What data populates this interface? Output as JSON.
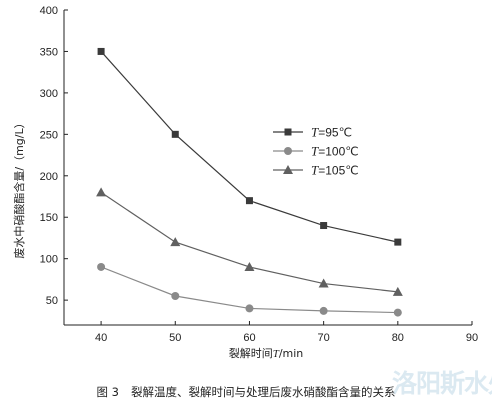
{
  "chart_data": {
    "type": "line",
    "title": "",
    "xlabel": "裂解时间",
    "xlabel_var": "T",
    "xlabel_unit": "/min",
    "ylabel": "废水中硝酸酯含量/（mg/L）",
    "x": [
      40,
      50,
      60,
      70,
      80
    ],
    "xlim": [
      35,
      90
    ],
    "ylim": [
      20,
      400
    ],
    "xticks": [
      40,
      50,
      60,
      70,
      80,
      90
    ],
    "yticks": [
      50,
      100,
      150,
      200,
      250,
      300,
      350,
      400
    ],
    "grid": false,
    "legend_position": "middle-right",
    "series": [
      {
        "name": "=95℃",
        "name_var": "T",
        "marker": "square",
        "color": "#3a3a3a",
        "values": [
          350,
          250,
          170,
          140,
          120
        ]
      },
      {
        "name": "=100℃",
        "name_var": "T",
        "marker": "circle",
        "color": "#8a8a8a",
        "values": [
          90,
          55,
          40,
          37,
          35
        ]
      },
      {
        "name": "=105℃",
        "name_var": "T",
        "marker": "triangle",
        "color": "#606060",
        "values": [
          180,
          120,
          90,
          70,
          60
        ]
      }
    ]
  },
  "caption": {
    "figure_label": "图 3",
    "text": "裂解温度、裂解时间与处理后废水硝酸酯含量的关系"
  },
  "watermark": "洛阳斯水处理"
}
